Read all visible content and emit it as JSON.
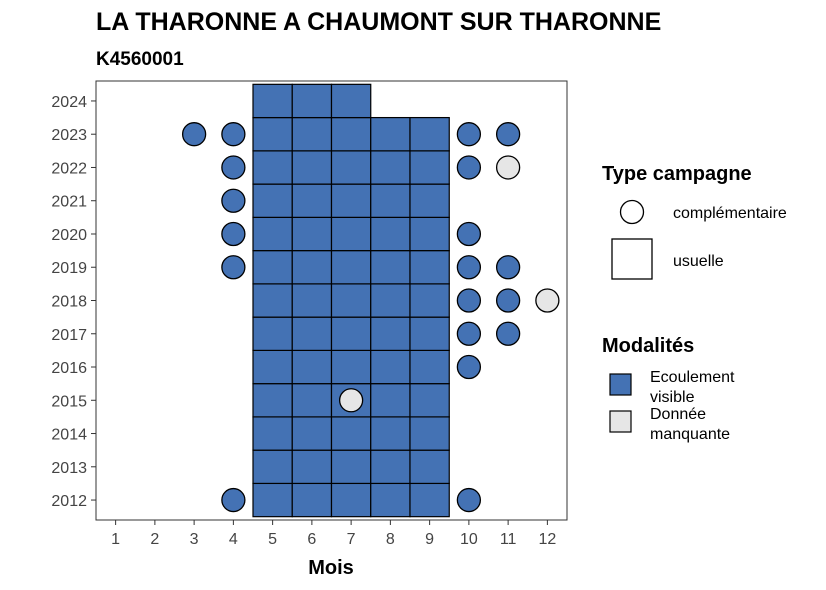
{
  "chart_data": {
    "type": "heatmap",
    "title": "LA THARONNE A CHAUMONT SUR THARONNE",
    "subtitle": "K4560001",
    "xlabel": "Mois",
    "ylabel": "",
    "x_ticks": [
      1,
      2,
      3,
      4,
      5,
      6,
      7,
      8,
      9,
      10,
      11,
      12
    ],
    "y_ticks": [
      2012,
      2013,
      2014,
      2015,
      2016,
      2017,
      2018,
      2019,
      2020,
      2021,
      2022,
      2023,
      2024
    ],
    "xlim": [
      0.5,
      12.5
    ],
    "ylim": [
      2011.4,
      2024.6
    ],
    "grid": false,
    "legend_position": "right",
    "colors": {
      "ecoulement_visible": "#4472b4",
      "donnee_manquante": "#e6e6e6",
      "outline": "#000000",
      "panel_border": "#333333"
    },
    "legend": {
      "type_title": "Type campagne",
      "type_items": [
        {
          "key": "complementaire",
          "label": "complémentaire",
          "shape": "circle"
        },
        {
          "key": "usuelle",
          "label": "usuelle",
          "shape": "square"
        }
      ],
      "mod_title": "Modalités",
      "mod_items": [
        {
          "key": "ecoulement_visible",
          "label_lines": [
            "Ecoulement",
            "visible"
          ]
        },
        {
          "key": "donnee_manquante",
          "label_lines": [
            "Donnée",
            "manquante"
          ]
        }
      ]
    },
    "usuelle": [
      {
        "month": 5,
        "years": [
          2012,
          2013,
          2014,
          2015,
          2016,
          2017,
          2018,
          2019,
          2020,
          2021,
          2022,
          2023,
          2024
        ],
        "modalite": "ecoulement_visible"
      },
      {
        "month": 6,
        "years": [
          2012,
          2013,
          2014,
          2015,
          2016,
          2017,
          2018,
          2019,
          2020,
          2021,
          2022,
          2023,
          2024
        ],
        "modalite": "ecoulement_visible"
      },
      {
        "month": 7,
        "years": [
          2012,
          2013,
          2014,
          2015,
          2016,
          2017,
          2018,
          2019,
          2020,
          2021,
          2022,
          2023,
          2024
        ],
        "modalite": "ecoulement_visible"
      },
      {
        "month": 8,
        "years": [
          2012,
          2013,
          2014,
          2015,
          2016,
          2017,
          2018,
          2019,
          2020,
          2021,
          2022,
          2023
        ],
        "modalite": "ecoulement_visible"
      },
      {
        "month": 9,
        "years": [
          2012,
          2013,
          2014,
          2015,
          2016,
          2017,
          2018,
          2019,
          2020,
          2021,
          2022,
          2023
        ],
        "modalite": "ecoulement_visible"
      }
    ],
    "complementaire": [
      {
        "year": 2023,
        "month": 3,
        "modalite": "ecoulement_visible"
      },
      {
        "year": 2023,
        "month": 4,
        "modalite": "ecoulement_visible"
      },
      {
        "year": 2023,
        "month": 10,
        "modalite": "ecoulement_visible"
      },
      {
        "year": 2023,
        "month": 11,
        "modalite": "ecoulement_visible"
      },
      {
        "year": 2022,
        "month": 4,
        "modalite": "ecoulement_visible"
      },
      {
        "year": 2022,
        "month": 10,
        "modalite": "ecoulement_visible"
      },
      {
        "year": 2022,
        "month": 11,
        "modalite": "donnee_manquante"
      },
      {
        "year": 2021,
        "month": 4,
        "modalite": "ecoulement_visible"
      },
      {
        "year": 2020,
        "month": 4,
        "modalite": "ecoulement_visible"
      },
      {
        "year": 2020,
        "month": 10,
        "modalite": "ecoulement_visible"
      },
      {
        "year": 2019,
        "month": 4,
        "modalite": "ecoulement_visible"
      },
      {
        "year": 2019,
        "month": 10,
        "modalite": "ecoulement_visible"
      },
      {
        "year": 2019,
        "month": 11,
        "modalite": "ecoulement_visible"
      },
      {
        "year": 2018,
        "month": 10,
        "modalite": "ecoulement_visible"
      },
      {
        "year": 2018,
        "month": 11,
        "modalite": "ecoulement_visible"
      },
      {
        "year": 2018,
        "month": 12,
        "modalite": "donnee_manquante"
      },
      {
        "year": 2017,
        "month": 10,
        "modalite": "ecoulement_visible"
      },
      {
        "year": 2017,
        "month": 11,
        "modalite": "ecoulement_visible"
      },
      {
        "year": 2016,
        "month": 10,
        "modalite": "ecoulement_visible"
      },
      {
        "year": 2015,
        "month": 7,
        "modalite": "donnee_manquante"
      },
      {
        "year": 2012,
        "month": 4,
        "modalite": "ecoulement_visible"
      },
      {
        "year": 2012,
        "month": 10,
        "modalite": "ecoulement_visible"
      }
    ]
  }
}
